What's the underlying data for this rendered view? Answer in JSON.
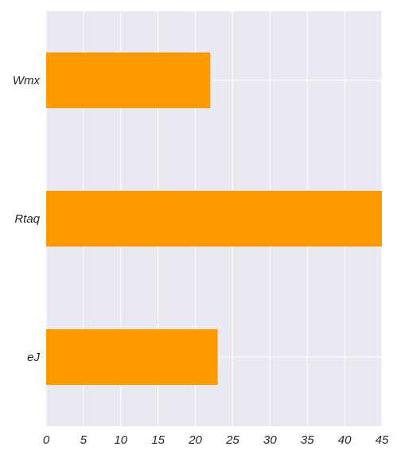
{
  "chart_data": {
    "type": "bar",
    "orientation": "horizontal",
    "categories": [
      "Wmx",
      "Rtaq",
      "eJ"
    ],
    "values": [
      22,
      45,
      23
    ],
    "xlim": [
      0,
      45
    ],
    "xticks": [
      "0",
      "5",
      "10",
      "15",
      "20",
      "25",
      "30",
      "35",
      "40",
      "45"
    ],
    "title": "",
    "xlabel": "",
    "ylabel": "",
    "grid": true,
    "legend": "none"
  },
  "colors": {
    "bar": "#FF9900",
    "plot_background": "#E8E9F1",
    "grid": "#FFFFFF",
    "text": "#262626"
  }
}
